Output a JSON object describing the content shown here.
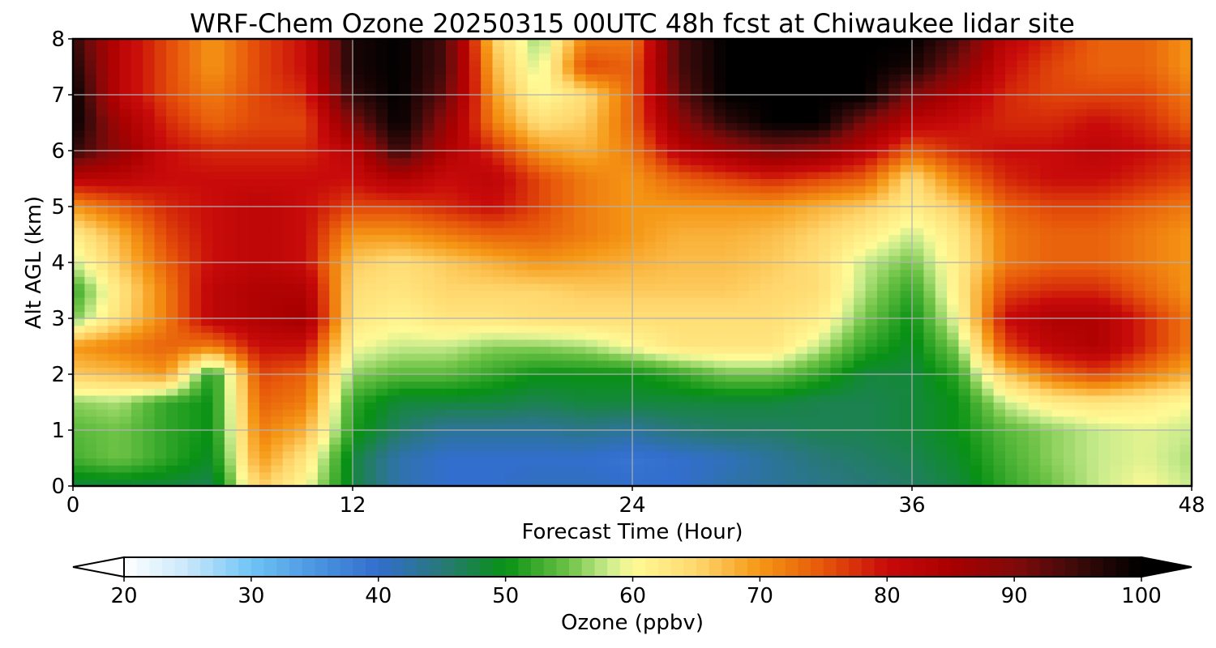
{
  "chart_data": {
    "type": "heatmap",
    "title": "WRF-Chem Ozone  20250315 00UTC 48h fcst at Chiwaukee lidar site",
    "xlabel": "Forecast Time (Hour)",
    "ylabel": "Alt AGL (km)",
    "xlim": [
      0,
      48
    ],
    "ylim": [
      0,
      8
    ],
    "x_ticks": [
      "0",
      "12",
      "24",
      "36",
      "48"
    ],
    "y_ticks": [
      "0",
      "1",
      "2",
      "3",
      "4",
      "5",
      "6",
      "7",
      "8"
    ],
    "grid": true,
    "x": [
      0,
      2,
      4,
      6,
      8,
      10,
      12,
      14,
      16,
      18,
      20,
      22,
      24,
      26,
      28,
      30,
      32,
      34,
      36,
      38,
      40,
      42,
      44,
      46,
      48
    ],
    "y": [
      0,
      0.5,
      1,
      1.5,
      2,
      2.5,
      3,
      3.5,
      4,
      4.5,
      5,
      5.5,
      6,
      6.5,
      7,
      7.5,
      8
    ],
    "z_units": "ppbv",
    "z": [
      [
        48,
        48,
        48,
        47,
        66,
        60,
        48,
        42,
        40,
        40,
        41,
        41,
        40,
        40,
        42,
        43,
        44,
        45,
        46,
        48,
        52,
        55,
        58,
        60,
        58
      ],
      [
        53,
        55,
        52,
        49,
        70,
        63,
        48,
        42,
        40,
        40,
        40,
        40,
        39,
        40,
        41,
        43,
        45,
        46,
        47,
        49,
        53,
        56,
        58,
        59,
        57
      ],
      [
        54,
        55,
        52,
        50,
        72,
        68,
        51,
        46,
        43,
        43,
        43,
        44,
        43,
        45,
        46,
        46,
        47,
        47,
        48,
        50,
        54,
        56,
        58,
        59,
        58
      ],
      [
        56,
        57,
        52,
        50,
        74,
        72,
        52,
        48,
        48,
        48,
        47,
        48,
        48,
        48,
        48,
        48,
        47,
        47,
        48,
        50,
        58,
        62,
        63,
        62,
        60
      ],
      [
        66,
        67,
        70,
        50,
        76,
        74,
        56,
        54,
        54,
        52,
        50,
        50,
        50,
        52,
        55,
        55,
        52,
        48,
        48,
        52,
        66,
        73,
        76,
        72,
        68
      ],
      [
        70,
        72,
        74,
        72,
        80,
        80,
        60,
        58,
        58,
        56,
        56,
        57,
        60,
        63,
        63,
        63,
        58,
        52,
        49,
        56,
        76,
        82,
        84,
        78,
        72
      ],
      [
        55,
        64,
        72,
        82,
        84,
        86,
        63,
        61,
        63,
        63,
        64,
        64,
        64,
        64,
        64,
        64,
        62,
        55,
        50,
        60,
        80,
        84,
        84,
        78,
        72
      ],
      [
        52,
        63,
        72,
        82,
        84,
        84,
        64,
        63,
        65,
        65,
        65,
        66,
        66,
        66,
        66,
        65,
        64,
        57,
        52,
        62,
        76,
        78,
        78,
        74,
        70
      ],
      [
        58,
        66,
        74,
        80,
        82,
        80,
        66,
        64,
        66,
        68,
        70,
        69,
        68,
        67,
        67,
        66,
        64,
        58,
        55,
        62,
        72,
        74,
        74,
        72,
        70
      ],
      [
        62,
        68,
        76,
        80,
        82,
        80,
        70,
        70,
        72,
        74,
        74,
        72,
        70,
        68,
        68,
        67,
        65,
        62,
        58,
        63,
        72,
        74,
        74,
        72,
        70
      ],
      [
        70,
        74,
        78,
        80,
        82,
        80,
        76,
        76,
        78,
        80,
        76,
        72,
        70,
        70,
        70,
        70,
        68,
        66,
        62,
        66,
        74,
        76,
        76,
        74,
        72
      ],
      [
        82,
        82,
        80,
        80,
        80,
        80,
        80,
        84,
        80,
        82,
        76,
        72,
        70,
        74,
        76,
        78,
        76,
        74,
        64,
        72,
        78,
        80,
        80,
        78,
        76
      ],
      [
        96,
        88,
        80,
        78,
        78,
        78,
        82,
        96,
        84,
        78,
        70,
        68,
        72,
        82,
        86,
        90,
        88,
        82,
        74,
        78,
        80,
        80,
        82,
        80,
        78
      ],
      [
        100,
        86,
        78,
        74,
        76,
        76,
        90,
        100,
        88,
        72,
        64,
        66,
        74,
        88,
        96,
        100,
        100,
        90,
        82,
        80,
        78,
        78,
        80,
        78,
        74
      ],
      [
        100,
        82,
        76,
        72,
        76,
        78,
        96,
        100,
        92,
        70,
        60,
        64,
        74,
        92,
        100,
        100,
        100,
        100,
        90,
        84,
        78,
        76,
        76,
        76,
        72
      ],
      [
        98,
        82,
        76,
        70,
        76,
        80,
        98,
        100,
        94,
        68,
        58,
        76,
        74,
        94,
        100,
        100,
        100,
        100,
        98,
        90,
        80,
        76,
        74,
        74,
        70
      ],
      [
        96,
        82,
        76,
        70,
        76,
        80,
        98,
        100,
        94,
        66,
        56,
        72,
        72,
        94,
        100,
        100,
        100,
        100,
        100,
        94,
        82,
        78,
        74,
        74,
        70
      ]
    ],
    "colorbar": {
      "label": "Ozone  (ppbv)",
      "min": 20,
      "max": 100,
      "ticks": [
        "20",
        "30",
        "40",
        "50",
        "60",
        "70",
        "80",
        "90",
        "100"
      ],
      "extend": "both"
    }
  }
}
